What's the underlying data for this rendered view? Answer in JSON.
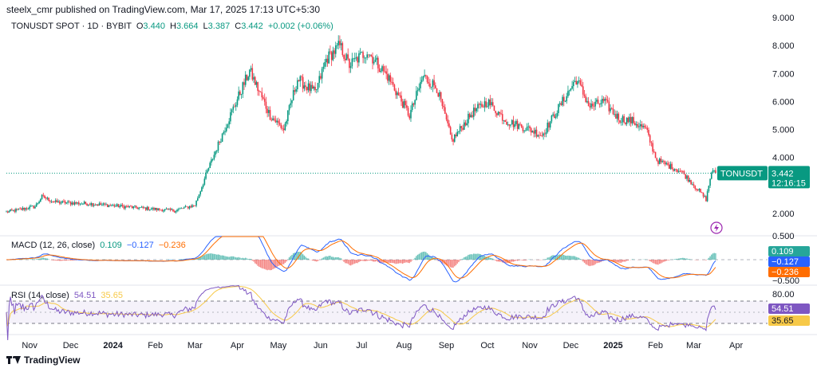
{
  "header": {
    "publisher": "steelx_cmr published on TradingView.com, Mar 17, 2025 17:13 UTC+5:30"
  },
  "legend": {
    "symbol": "TONUSDT SPOT · 1D · BYBIT",
    "open_label": "O",
    "open": "3.440",
    "high_label": "H",
    "high": "3.664",
    "low_label": "L",
    "low": "3.387",
    "close_label": "C",
    "close": "3.442",
    "change": "+0.002 (+0.06%)"
  },
  "macd_legend": {
    "label": "MACD (12, 26, close)",
    "v1": "0.109",
    "v2": "−0.127",
    "v3": "−0.236"
  },
  "rsi_legend": {
    "label": "RSI (14, close)",
    "v1": "54.51",
    "v2": "35.65"
  },
  "footer": {
    "brand": "TradingView"
  },
  "colors": {
    "up": "#089981",
    "down": "#f23645",
    "macd_line": "#2962ff",
    "signal_line": "#ff6d00",
    "rsi_line": "#7e57c2",
    "rsi_ma": "#f7c948",
    "price_line": "#089981",
    "grid": "#f0f3fa"
  },
  "chart_data": [
    {
      "type": "candlestick",
      "title": "TONUSDT SPOT · 1D · BYBIT",
      "y_ticks": [
        "9.000",
        "8.000",
        "7.000",
        "6.000",
        "5.000",
        "4.000",
        "2.000"
      ],
      "ylim": [
        1.7,
        9.0
      ],
      "x_ticks": [
        "Nov",
        "Dec",
        "2024",
        "Feb",
        "Mar",
        "Apr",
        "May",
        "Jun",
        "Jul",
        "Aug",
        "Sep",
        "Oct",
        "Nov",
        "Dec",
        "2025",
        "Feb",
        "Mar",
        "Apr"
      ],
      "bold_ticks": [
        "2024",
        "2025"
      ],
      "anchors": [
        [
          "2023-10-15",
          2.05
        ],
        [
          "2023-11-05",
          2.25
        ],
        [
          "2023-11-10",
          2.6
        ],
        [
          "2023-11-20",
          2.4
        ],
        [
          "2023-12-15",
          2.35
        ],
        [
          "2024-01-20",
          2.2
        ],
        [
          "2024-02-15",
          2.1
        ],
        [
          "2024-03-01",
          2.3
        ],
        [
          "2024-03-10",
          3.5
        ],
        [
          "2024-03-25",
          5.3
        ],
        [
          "2024-04-10",
          7.1
        ],
        [
          "2024-04-25",
          5.5
        ],
        [
          "2024-05-05",
          5.0
        ],
        [
          "2024-05-15",
          6.8
        ],
        [
          "2024-05-28",
          6.3
        ],
        [
          "2024-06-05",
          7.5
        ],
        [
          "2024-06-15",
          8.0
        ],
        [
          "2024-06-22",
          7.3
        ],
        [
          "2024-07-05",
          7.8
        ],
        [
          "2024-07-20",
          6.9
        ],
        [
          "2024-08-05",
          5.5
        ],
        [
          "2024-08-15",
          6.9
        ],
        [
          "2024-08-25",
          6.5
        ],
        [
          "2024-09-05",
          4.6
        ],
        [
          "2024-09-20",
          5.6
        ],
        [
          "2024-10-01",
          6.0
        ],
        [
          "2024-10-15",
          5.3
        ],
        [
          "2024-11-01",
          5.0
        ],
        [
          "2024-11-10",
          4.8
        ],
        [
          "2024-11-20",
          5.6
        ],
        [
          "2024-12-05",
          6.8
        ],
        [
          "2024-12-15",
          5.8
        ],
        [
          "2024-12-25",
          6.0
        ],
        [
          "2025-01-05",
          5.4
        ],
        [
          "2025-01-15",
          5.3
        ],
        [
          "2025-01-25",
          5.0
        ],
        [
          "2025-02-02",
          3.9
        ],
        [
          "2025-02-20",
          3.5
        ],
        [
          "2025-03-05",
          2.8
        ],
        [
          "2025-03-10",
          2.5
        ],
        [
          "2025-03-14",
          3.5
        ],
        [
          "2025-03-17",
          3.44
        ]
      ],
      "last_price_label": "TONUSDT",
      "last_price": "3.442",
      "countdown": "12:16:15"
    },
    {
      "type": "macd",
      "name": "MACD (12, 26, close)",
      "y_ticks": [
        "0.500",
        "−0.500"
      ],
      "values": {
        "histogram": "0.109",
        "macd": "−0.127",
        "signal": "−0.236"
      }
    },
    {
      "type": "rsi",
      "name": "RSI (14, close)",
      "y_ticks": [
        "80.00"
      ],
      "band": [
        30,
        70
      ],
      "values": {
        "rsi": "54.51",
        "ma": "35.65"
      }
    }
  ]
}
